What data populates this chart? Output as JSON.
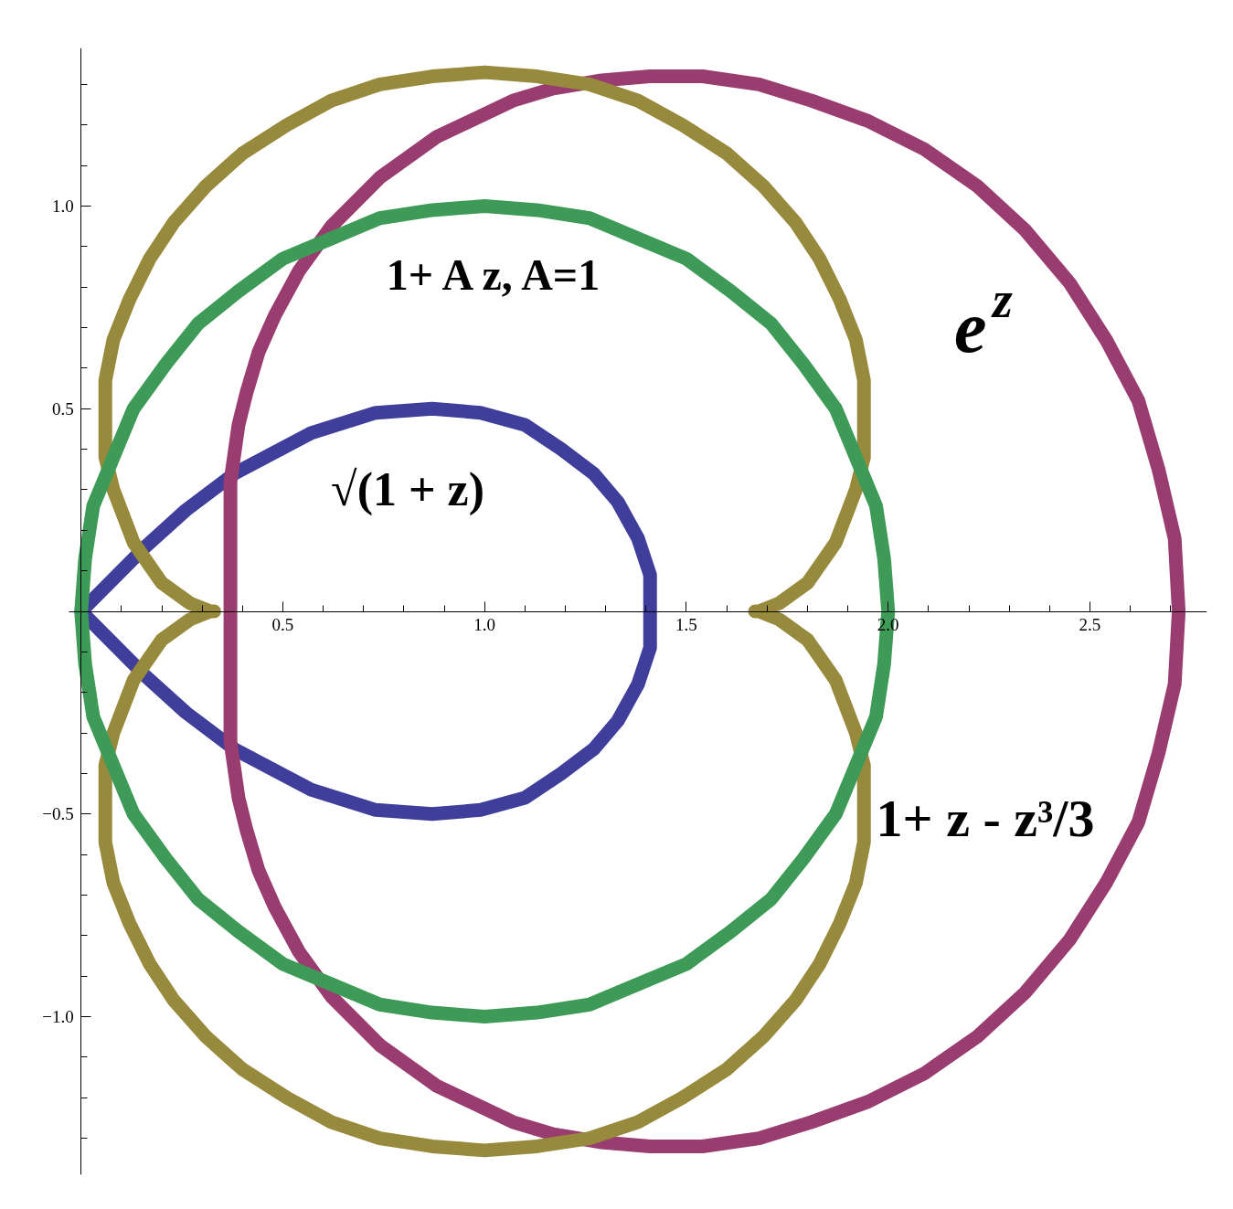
{
  "chart_data": {
    "type": "line",
    "xlim": [
      -0.03,
      2.79
    ],
    "ylim": [
      -1.39,
      1.39
    ],
    "xticks": [
      {
        "value": 0.1,
        "label": null
      },
      {
        "value": 0.2,
        "label": null
      },
      {
        "value": 0.3,
        "label": null
      },
      {
        "value": 0.4,
        "label": null
      },
      0.5,
      {
        "value": 0.6,
        "label": null
      },
      {
        "value": 0.7,
        "label": null
      },
      {
        "value": 0.8,
        "label": null
      },
      {
        "value": 0.9,
        "label": null
      },
      {
        "value": 1,
        "label": "1.0"
      },
      {
        "value": 1.1,
        "label": null
      },
      {
        "value": 1.2,
        "label": null
      },
      {
        "value": 1.3,
        "label": null
      },
      {
        "value": 1.4,
        "label": null
      },
      1.5,
      {
        "value": 1.6,
        "label": null
      },
      {
        "value": 1.7,
        "label": null
      },
      {
        "value": 1.8,
        "label": null
      },
      {
        "value": 1.9,
        "label": null
      },
      {
        "value": 2,
        "label": "2.0"
      },
      {
        "value": 2.1,
        "label": null
      },
      {
        "value": 2.2,
        "label": null
      },
      {
        "value": 2.3,
        "label": null
      },
      {
        "value": 2.4,
        "label": null
      },
      2.5,
      {
        "value": 2.6,
        "label": null
      },
      {
        "value": 2.7,
        "label": null
      }
    ],
    "yticks": [
      {
        "value": -1.3,
        "label": null
      },
      {
        "value": -1.2,
        "label": null
      },
      {
        "value": -1.1,
        "label": null
      },
      {
        "value": -1,
        "label": "−1.0"
      },
      {
        "value": -0.9,
        "label": null
      },
      {
        "value": -0.8,
        "label": null
      },
      {
        "value": -0.7,
        "label": null
      },
      {
        "value": -0.6,
        "label": null
      },
      {
        "value": -0.5,
        "label": "−0.5"
      },
      {
        "value": -0.4,
        "label": null
      },
      {
        "value": -0.3,
        "label": null
      },
      {
        "value": -0.2,
        "label": null
      },
      {
        "value": -0.1,
        "label": null
      },
      {
        "value": 0.1,
        "label": null
      },
      {
        "value": 0.2,
        "label": null
      },
      {
        "value": 0.3,
        "label": null
      },
      {
        "value": 0.4,
        "label": null
      },
      0.5,
      {
        "value": 0.6,
        "label": null
      },
      {
        "value": 0.7,
        "label": null
      },
      {
        "value": 0.8,
        "label": null
      },
      {
        "value": 0.9,
        "label": null
      },
      {
        "value": 1,
        "label": "1.0"
      },
      {
        "value": 1.1,
        "label": null
      },
      {
        "value": 1.2,
        "label": null
      },
      {
        "value": 1.3,
        "label": null
      }
    ],
    "series": [
      {
        "name": "√(1 + z)",
        "color": "#3f3f9b",
        "x": [
          0,
          0.16,
          0.26,
          0.38,
          0.57,
          0.73,
          0.87,
          0.99,
          1.1,
          1.19,
          1.27,
          1.33,
          1.38,
          1.41,
          1.41,
          1.41,
          1.38,
          1.33,
          1.27,
          1.19,
          1.1,
          0.99,
          0.87,
          0.73,
          0.57,
          0.38,
          0.26,
          0.16,
          0,
          0.16,
          0.26
        ],
        "values": [
          0,
          -0.16,
          -0.25,
          -0.34,
          -0.44,
          -0.49,
          -0.5,
          -0.49,
          -0.46,
          -0.4,
          -0.34,
          -0.27,
          -0.18,
          -0.09,
          0,
          0.09,
          0.18,
          0.27,
          0.34,
          0.4,
          0.46,
          0.49,
          0.5,
          0.49,
          0.44,
          0.34,
          0.25,
          0.16,
          0,
          -0.16,
          -0.25
        ]
      },
      {
        "name": "e$^{z}$",
        "color": "#993c70",
        "x": [
          2.72,
          2.71,
          2.67,
          2.62,
          2.54,
          2.45,
          2.34,
          2.22,
          2.09,
          1.95,
          1.81,
          1.68,
          1.54,
          1.41,
          1.29,
          1.17,
          1.07,
          0.88,
          0.74,
          0.62,
          0.54,
          0.48,
          0.44,
          0.41,
          0.39,
          0.38,
          0.37,
          0.37,
          0.37,
          0.37,
          0.37,
          0.37,
          0.37,
          0.37,
          0.37,
          0.38,
          0.39,
          0.41,
          0.44,
          0.48,
          0.54,
          0.62,
          0.74,
          0.88,
          1.07,
          1.17,
          1.29,
          1.41,
          1.54,
          1.68,
          1.81,
          1.95,
          2.09,
          2.22,
          2.34,
          2.45,
          2.54,
          2.62,
          2.67,
          2.71,
          2.72,
          2.71,
          2.67
        ],
        "values": [
          0,
          0.18,
          0.35,
          0.52,
          0.67,
          0.81,
          0.94,
          1.05,
          1.14,
          1.21,
          1.26,
          1.3,
          1.32,
          1.32,
          1.31,
          1.29,
          1.26,
          1.17,
          1.07,
          0.95,
          0.84,
          0.73,
          0.64,
          0.54,
          0.46,
          0.39,
          0.32,
          0.26,
          0.2,
          0.1,
          0,
          -0.1,
          -0.2,
          -0.26,
          -0.32,
          -0.39,
          -0.46,
          -0.54,
          -0.64,
          -0.73,
          -0.84,
          -0.95,
          -1.07,
          -1.17,
          -1.26,
          -1.29,
          -1.31,
          -1.32,
          -1.32,
          -1.3,
          -1.26,
          -1.21,
          -1.14,
          -1.05,
          -0.94,
          -0.81,
          -0.67,
          -0.52,
          -0.35,
          -0.18,
          0,
          0.18,
          0.35
        ]
      },
      {
        "name": "1+ z - z³/3",
        "color": "#988a3c",
        "x": [
          1.67,
          1.68,
          1.73,
          1.8,
          1.87,
          1.92,
          1.94,
          1.94,
          1.94,
          1.92,
          1.88,
          1.83,
          1.77,
          1.69,
          1.6,
          1.49,
          1.38,
          1.26,
          1.13,
          1.0,
          0.87,
          0.74,
          0.62,
          0.51,
          0.4,
          0.31,
          0.23,
          0.17,
          0.12,
          0.08,
          0.06,
          0.06,
          0.06,
          0.08,
          0.13,
          0.2,
          0.27,
          0.32,
          0.33,
          0.32,
          0.27,
          0.2,
          0.13,
          0.08,
          0.06,
          0.06,
          0.06,
          0.08,
          0.12,
          0.17,
          0.23,
          0.31,
          0.4,
          0.51,
          0.62,
          0.74,
          0.87,
          1.0,
          1.13,
          1.26,
          1.38,
          1.49,
          1.6,
          1.69,
          1.77,
          1.83,
          1.88,
          1.92,
          1.94,
          1.94,
          1.94,
          1.92,
          1.87,
          1.8,
          1.73,
          1.68,
          1.67,
          1.68,
          1.73,
          1.8
        ],
        "values": [
          0,
          0,
          0.02,
          0.07,
          0.17,
          0.3,
          0.38,
          0.47,
          0.57,
          0.67,
          0.77,
          0.87,
          0.96,
          1.05,
          1.13,
          1.2,
          1.26,
          1.3,
          1.32,
          1.33,
          1.32,
          1.3,
          1.26,
          1.2,
          1.13,
          1.05,
          0.96,
          0.87,
          0.77,
          0.67,
          0.57,
          0.47,
          0.38,
          0.3,
          0.17,
          0.07,
          0.02,
          0,
          0,
          0,
          -0.02,
          -0.07,
          -0.17,
          -0.3,
          -0.38,
          -0.47,
          -0.57,
          -0.67,
          -0.77,
          -0.87,
          -0.96,
          -1.05,
          -1.13,
          -1.2,
          -1.26,
          -1.3,
          -1.32,
          -1.33,
          -1.32,
          -1.3,
          -1.26,
          -1.2,
          -1.13,
          -1.05,
          -0.96,
          -0.87,
          -0.77,
          -0.67,
          -0.57,
          -0.47,
          -0.38,
          -0.3,
          -0.17,
          -0.07,
          -0.02,
          0,
          0,
          0,
          0.02,
          0.07
        ]
      },
      {
        "name": "1+ A z, A=1",
        "color": "#3d9a57",
        "x": [
          2,
          1.99,
          1.97,
          1.92,
          1.87,
          1.79,
          1.71,
          1.61,
          1.5,
          1.38,
          1.26,
          1.13,
          1,
          0.87,
          0.74,
          0.62,
          0.5,
          0.39,
          0.29,
          0.21,
          0.13,
          0.08,
          0.03,
          0.01,
          0,
          0.01,
          0.03,
          0.08,
          0.13,
          0.21,
          0.29,
          0.39,
          0.5,
          0.62,
          0.74,
          0.87,
          1,
          1.13,
          1.26,
          1.38,
          1.5,
          1.61,
          1.71,
          1.79,
          1.87,
          1.92,
          1.97,
          1.99,
          2,
          1.99,
          1.97
        ],
        "values": [
          0,
          0.13,
          0.26,
          0.38,
          0.5,
          0.61,
          0.71,
          0.79,
          0.87,
          0.92,
          0.97,
          0.99,
          1,
          0.99,
          0.97,
          0.92,
          0.87,
          0.79,
          0.71,
          0.61,
          0.5,
          0.38,
          0.26,
          0.13,
          0,
          -0.13,
          -0.26,
          -0.38,
          -0.5,
          -0.61,
          -0.71,
          -0.79,
          -0.87,
          -0.92,
          -0.97,
          -0.99,
          -1,
          -0.99,
          -0.97,
          -0.92,
          -0.87,
          -0.79,
          -0.71,
          -0.61,
          -0.5,
          -0.38,
          -0.26,
          -0.13,
          0,
          0.13,
          0.26
        ]
      }
    ]
  }
}
